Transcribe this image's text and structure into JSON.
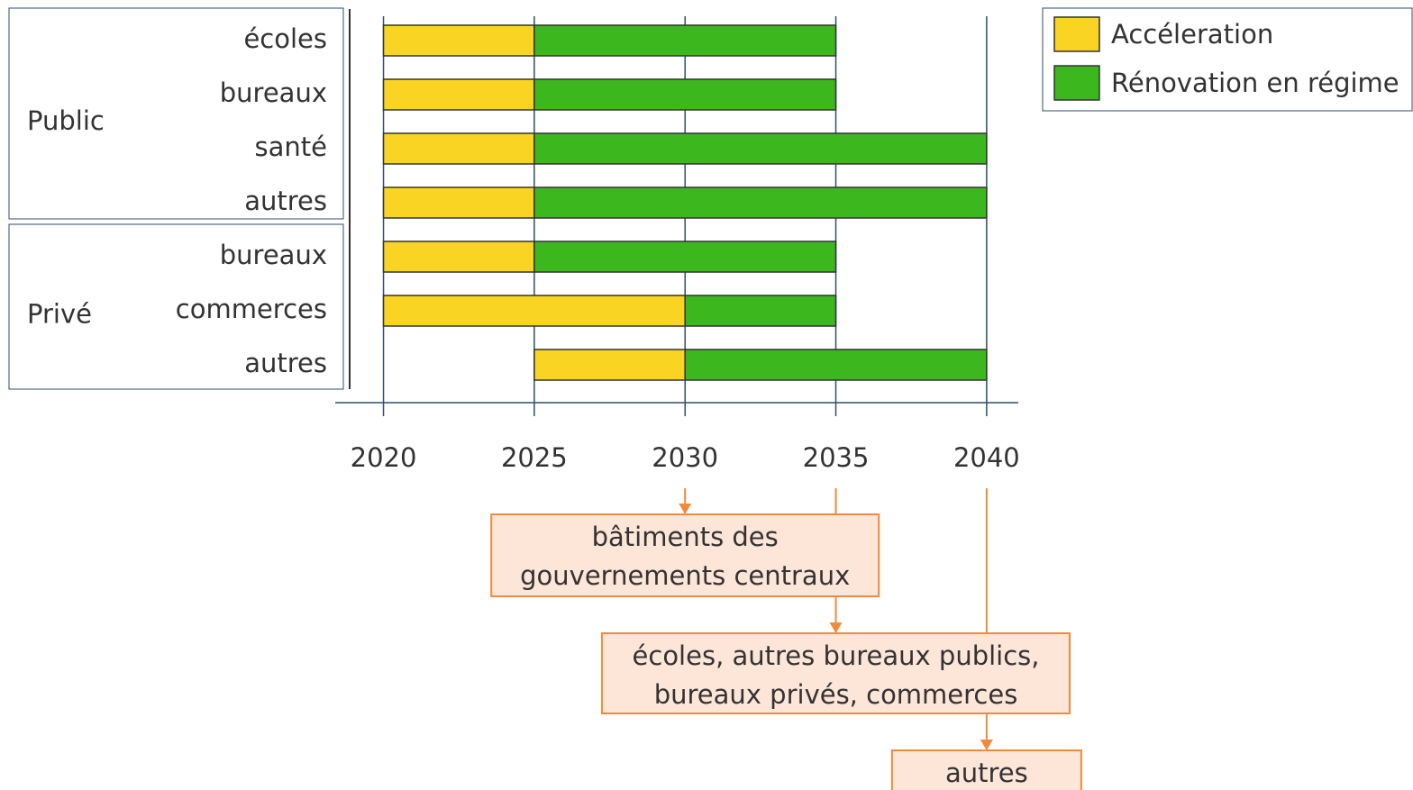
{
  "chart_data": {
    "type": "gantt",
    "groups": [
      {
        "name": "Public",
        "categories": [
          "écoles",
          "bureaux",
          "santé",
          "autres"
        ]
      },
      {
        "name": "Privé",
        "categories": [
          "bureaux",
          "commerces",
          "autres"
        ]
      }
    ],
    "series": [
      {
        "name": "Accéleration",
        "color": "#f9d423",
        "values": [
          [
            2020,
            2025
          ],
          [
            2020,
            2025
          ],
          [
            2020,
            2025
          ],
          [
            2020,
            2025
          ],
          [
            2020,
            2025
          ],
          [
            2020,
            2030
          ],
          [
            2025,
            2030
          ]
        ]
      },
      {
        "name": "Rénovation en régime",
        "color": "#3cb81e",
        "values": [
          [
            2025,
            2035
          ],
          [
            2025,
            2035
          ],
          [
            2025,
            2040
          ],
          [
            2025,
            2040
          ],
          [
            2025,
            2035
          ],
          [
            2030,
            2035
          ],
          [
            2030,
            2040
          ]
        ]
      }
    ],
    "xlim": [
      2018.4,
      2041.05
    ],
    "xticks": [
      2020,
      2025,
      2030,
      2035,
      2040
    ],
    "grid": true,
    "legend": "top-right",
    "annotations": [
      {
        "x": 2030,
        "lines": [
          "bâtiments des",
          "gouvernements centraux"
        ]
      },
      {
        "x": 2035,
        "lines": [
          "écoles, autres bureaux publics,",
          "bureaux privés, commerces"
        ]
      },
      {
        "x": 2040,
        "lines": [
          "autres"
        ]
      }
    ]
  }
}
